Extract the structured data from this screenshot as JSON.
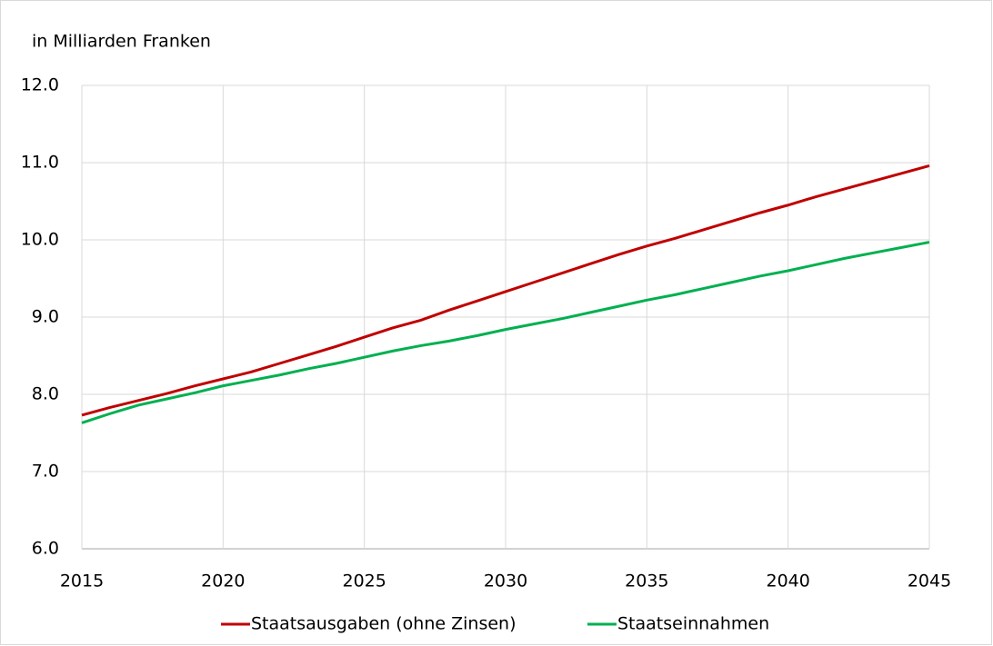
{
  "chart_data": {
    "type": "line",
    "y_label": "in Milliarden Franken",
    "x": [
      2015,
      2016,
      2017,
      2018,
      2019,
      2020,
      2021,
      2022,
      2023,
      2024,
      2025,
      2026,
      2027,
      2028,
      2029,
      2030,
      2031,
      2032,
      2033,
      2034,
      2035,
      2036,
      2037,
      2038,
      2039,
      2040,
      2041,
      2042,
      2043,
      2044,
      2045
    ],
    "series": [
      {
        "name": "Staatsausgaben (ohne Zinsen)",
        "color": "#c00000",
        "values": [
          7.73,
          7.83,
          7.92,
          8.01,
          8.11,
          8.2,
          8.29,
          8.4,
          8.51,
          8.62,
          8.74,
          8.86,
          8.96,
          9.09,
          9.21,
          9.33,
          9.45,
          9.57,
          9.69,
          9.81,
          9.92,
          10.02,
          10.13,
          10.24,
          10.35,
          10.45,
          10.56,
          10.66,
          10.76,
          10.86,
          10.96
        ]
      },
      {
        "name": "Staatseinnahmen",
        "color": "#00b050",
        "values": [
          7.63,
          7.75,
          7.86,
          7.94,
          8.02,
          8.11,
          8.18,
          8.25,
          8.33,
          8.4,
          8.48,
          8.56,
          8.63,
          8.69,
          8.76,
          8.84,
          8.91,
          8.98,
          9.06,
          9.14,
          9.22,
          9.29,
          9.37,
          9.45,
          9.53,
          9.6,
          9.68,
          9.76,
          9.83,
          9.9,
          9.97
        ]
      }
    ],
    "xlim": [
      2015,
      2045
    ],
    "xticks": [
      2015,
      2020,
      2025,
      2030,
      2035,
      2040,
      2045
    ],
    "ylim": [
      6,
      12
    ],
    "yticks": [
      {
        "value": 6,
        "label": "6.0"
      },
      {
        "value": 7,
        "label": "7.0"
      },
      {
        "value": 8,
        "label": "8.0"
      },
      {
        "value": 9,
        "label": "9.0"
      },
      {
        "value": 10,
        "label": "10.0"
      },
      {
        "value": 11,
        "label": "11.0"
      },
      {
        "value": 12,
        "label": "12.0"
      }
    ],
    "grid": true,
    "legend": "bottom"
  }
}
